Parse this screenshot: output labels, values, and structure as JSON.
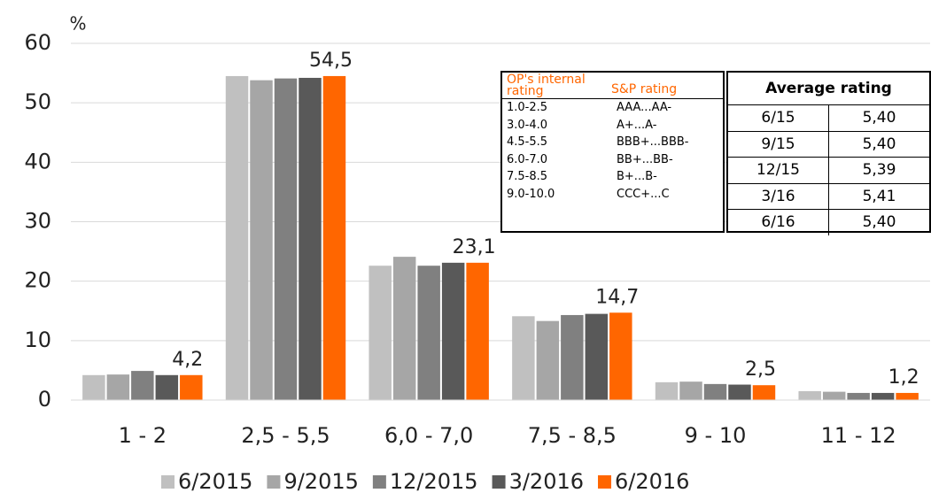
{
  "chart_data": {
    "type": "bar",
    "y_label": "%",
    "categories": [
      "1 - 2",
      "2,5 - 5,5",
      "6,0 - 7,0",
      "7,5 - 8,5",
      "9 - 10",
      "11 - 12"
    ],
    "series": [
      {
        "name": "6/2015",
        "color": "#c0c0c0",
        "values": [
          4.2,
          54.5,
          22.6,
          14.1,
          3.0,
          1.5
        ]
      },
      {
        "name": "9/2015",
        "color": "#a6a6a6",
        "values": [
          4.3,
          53.8,
          24.1,
          13.3,
          3.1,
          1.4
        ]
      },
      {
        "name": "12/2015",
        "color": "#808080",
        "values": [
          4.9,
          54.1,
          22.6,
          14.3,
          2.7,
          1.2
        ]
      },
      {
        "name": "3/2016",
        "color": "#595959",
        "values": [
          4.2,
          54.2,
          23.1,
          14.5,
          2.6,
          1.2
        ]
      },
      {
        "name": "6/2016",
        "color": "#ff6600",
        "values": [
          4.2,
          54.5,
          23.1,
          14.7,
          2.5,
          1.2
        ],
        "value_labels": [
          "4,2",
          "54,5",
          "23,1",
          "14,7",
          "2,5",
          "1,2"
        ]
      }
    ],
    "ylim": [
      0,
      60
    ],
    "yticks": [
      0,
      10,
      20,
      30,
      40,
      50,
      60
    ],
    "grid": true,
    "legend": "bottom"
  },
  "tables": {
    "rating_scale": {
      "headers": [
        "OP's internal rating",
        "S&P rating"
      ],
      "rows": [
        [
          "1.0-2.5",
          "AAA...AA-"
        ],
        [
          "3.0-4.0",
          "A+...A-"
        ],
        [
          "4.5-5.5",
          "BBB+...BBB-"
        ],
        [
          "6.0-7.0",
          "BB+...BB-"
        ],
        [
          "7.5-8.5",
          "B+...B-"
        ],
        [
          "9.0-10.0",
          "CCC+...C"
        ]
      ]
    },
    "average_rating": {
      "title": "Average rating",
      "rows": [
        [
          "6/15",
          "5,40"
        ],
        [
          "9/15",
          "5,40"
        ],
        [
          "12/15",
          "5,39"
        ],
        [
          "3/16",
          "5,41"
        ],
        [
          "6/16",
          "5,40"
        ]
      ]
    }
  }
}
